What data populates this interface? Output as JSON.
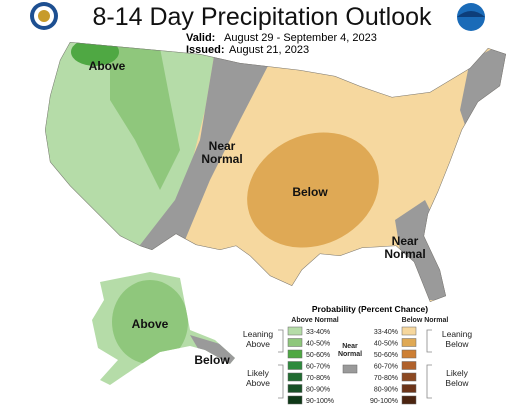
{
  "header": {
    "title": "8-14 Day Precipitation Outlook",
    "valid_label": "Valid:",
    "valid": "August 29 - September 4, 2023",
    "issued_label": "Issued:",
    "issued": "August 21, 2023"
  },
  "map_labels": [
    {
      "lines": [
        "Above"
      ]
    },
    {
      "lines": [
        "Near",
        "Normal"
      ]
    },
    {
      "lines": [
        "Below"
      ]
    },
    {
      "lines": [
        "Near",
        "Normal"
      ]
    },
    {
      "lines": [
        "Above"
      ]
    },
    {
      "lines": [
        "Below"
      ]
    }
  ],
  "legend": {
    "title": "Probability (Percent Chance)",
    "above_header": "Above Normal",
    "below_header": "Below Normal",
    "near": {
      "lines": [
        "Near",
        "Normal"
      ],
      "color": "#9a9a9a"
    },
    "groups": [
      {
        "lines": [
          "Leaning",
          "Above"
        ]
      },
      {
        "lines": [
          "Likely",
          "Above"
        ]
      },
      {
        "lines": [
          "Leaning",
          "Below"
        ]
      },
      {
        "lines": [
          "Likely",
          "Below"
        ]
      }
    ],
    "above": [
      {
        "label": "33-40%",
        "color": "#b5dca8"
      },
      {
        "label": "40-50%",
        "color": "#8fc77c"
      },
      {
        "label": "50-60%",
        "color": "#4fa843"
      },
      {
        "label": "60-70%",
        "color": "#2d8a3d"
      },
      {
        "label": "70-80%",
        "color": "#216c31"
      },
      {
        "label": "80-90%",
        "color": "#185026"
      },
      {
        "label": "90-100%",
        "color": "#0e3817"
      }
    ],
    "below": [
      {
        "label": "33-40%",
        "color": "#f6d79d"
      },
      {
        "label": "40-50%",
        "color": "#dfa955"
      },
      {
        "label": "50-60%",
        "color": "#cd7f34"
      },
      {
        "label": "60-70%",
        "color": "#b0612b"
      },
      {
        "label": "70-80%",
        "color": "#8c4922"
      },
      {
        "label": "80-90%",
        "color": "#6c3419"
      },
      {
        "label": "90-100%",
        "color": "#4b2410"
      }
    ]
  }
}
